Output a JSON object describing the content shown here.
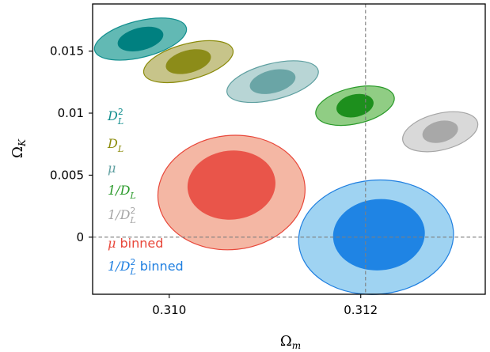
{
  "chart_data": {
    "type": "contour",
    "xlabel": "Ωm",
    "ylabel": "ΩK",
    "xlim": [
      0.3092,
      0.3133
    ],
    "ylim": [
      -0.0046,
      0.0188
    ],
    "xticks": [
      0.31,
      0.312
    ],
    "xtick_labels": [
      "0.310",
      "0.312"
    ],
    "yticks": [
      0,
      0.005,
      0.01,
      0.015
    ],
    "ytick_labels": [
      "0",
      "0.005",
      "0.01",
      "0.015"
    ],
    "reference_lines": {
      "x": 0.31205,
      "y": 0
    },
    "legend_placement": "left",
    "grid": false,
    "series": [
      {
        "legend": [
          "D",
          "2",
          "L",
          ""
        ],
        "color": "#138f8f",
        "inner": {
          "cx": 0.3097,
          "cy": 0.01597,
          "rx": 0.000244,
          "ry": 0.00091,
          "angle": -14,
          "fill": "#008080"
        },
        "outer": {
          "cx": 0.3097,
          "cy": 0.01597,
          "rx": 0.000493,
          "ry": 0.00147,
          "angle": -14,
          "fill": "#62b9b4"
        }
      },
      {
        "legend": [
          "D",
          "",
          "L",
          ""
        ],
        "color": "#8b8b0b",
        "inner": {
          "cx": 0.3102,
          "cy": 0.01415,
          "rx": 0.000242,
          "ry": 0.00091,
          "angle": -15,
          "fill": "#8c8c19"
        },
        "outer": {
          "cx": 0.3102,
          "cy": 0.01415,
          "rx": 0.000481,
          "ry": 0.00144,
          "angle": -15,
          "fill": "#c7c48a"
        }
      },
      {
        "legend": [
          "μ",
          "",
          "",
          ""
        ],
        "color": "#5e9fa0",
        "inner": {
          "cx": 0.31108,
          "cy": 0.01254,
          "rx": 0.000244,
          "ry": 0.00092,
          "angle": -14,
          "fill": "#6aa5a6"
        },
        "outer": {
          "cx": 0.31108,
          "cy": 0.01254,
          "rx": 0.00049,
          "ry": 0.00145,
          "angle": -14,
          "fill": "#b8d5d5"
        }
      },
      {
        "legend": [
          "1/D",
          "",
          "L",
          ""
        ],
        "color": "#2a9a2a",
        "inner": {
          "cx": 0.31194,
          "cy": 0.0106,
          "rx": 0.000197,
          "ry": 0.00091,
          "angle": -13,
          "fill": "#1d8f1d"
        },
        "outer": {
          "cx": 0.31194,
          "cy": 0.0106,
          "rx": 0.000419,
          "ry": 0.00145,
          "angle": -13,
          "fill": "#90cd84"
        }
      },
      {
        "legend": [
          "1/D",
          "2",
          "L",
          ""
        ],
        "color": "#a5a5a5",
        "inner": {
          "cx": 0.31283,
          "cy": 0.0085,
          "rx": 0.00019,
          "ry": 0.00086,
          "angle": -14,
          "fill": "#a8a8a8"
        },
        "outer": {
          "cx": 0.31283,
          "cy": 0.0085,
          "rx": 0.000402,
          "ry": 0.00147,
          "angle": -14,
          "fill": "#d9d9d9"
        }
      },
      {
        "legend": [
          "μ",
          "",
          "",
          " binned"
        ],
        "color": "#e8473a",
        "inner": {
          "cx": 0.31065,
          "cy": 0.0042,
          "rx": 0.00046,
          "ry": 0.00278,
          "angle": -6,
          "fill": "#e9554a"
        },
        "outer": {
          "cx": 0.31065,
          "cy": 0.0036,
          "rx": 0.00077,
          "ry": 0.0046,
          "angle": -6,
          "fill": "#f4b7a4"
        }
      },
      {
        "legend": [
          "1/D",
          "2",
          "L",
          " binned"
        ],
        "color": "#1f7fe0",
        "inner": {
          "cx": 0.31219,
          "cy": 0.0002,
          "rx": 0.00048,
          "ry": 0.00287,
          "angle": -5,
          "fill": "#1f84e4"
        },
        "outer": {
          "cx": 0.31216,
          "cy": 0.0,
          "rx": 0.00081,
          "ry": 0.0046,
          "angle": -5,
          "fill": "#9fd3f2"
        }
      }
    ]
  }
}
